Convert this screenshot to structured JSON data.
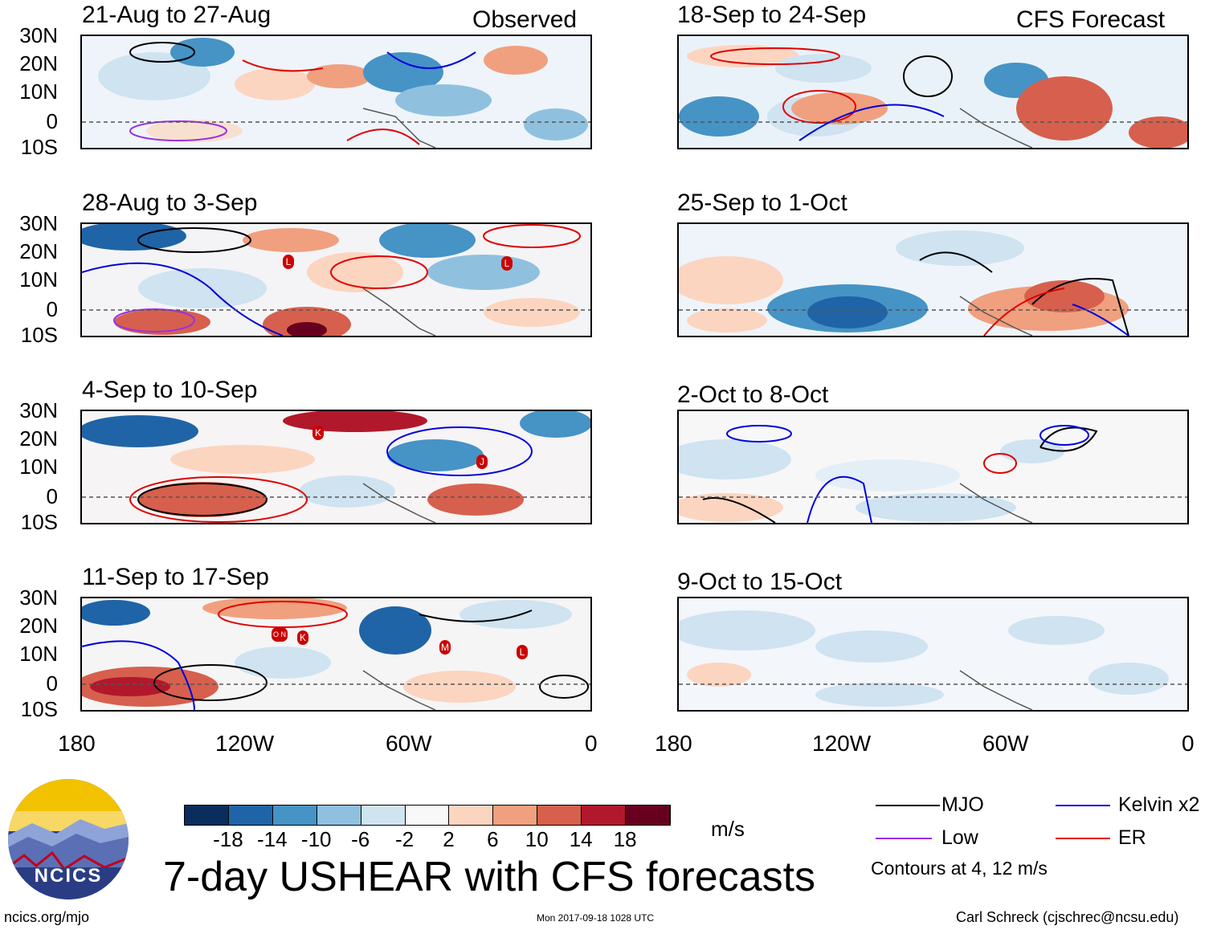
{
  "left_panels": [
    {
      "title": "21-Aug to 27-Aug",
      "tag": "Observed"
    },
    {
      "title": "28-Aug to 3-Sep",
      "tag": ""
    },
    {
      "title": "4-Sep to 10-Sep",
      "tag": ""
    },
    {
      "title": "11-Sep to 17-Sep",
      "tag": ""
    }
  ],
  "right_panels": [
    {
      "title": "18-Sep to 24-Sep",
      "tag": "CFS Forecast"
    },
    {
      "title": "25-Sep to 1-Oct",
      "tag": ""
    },
    {
      "title": "2-Oct to 8-Oct",
      "tag": ""
    },
    {
      "title": "9-Oct to 15-Oct",
      "tag": ""
    }
  ],
  "lat_labels": [
    "30N",
    "20N",
    "10N",
    "0",
    "10S"
  ],
  "lon_labels": [
    "180",
    "120W",
    "60W",
    "0"
  ],
  "colorbar": {
    "colors": [
      "#0b2d5e",
      "#1f64a6",
      "#4693c6",
      "#8fc1df",
      "#cfe3f1",
      "#f8f8f8",
      "#fcd5c0",
      "#f0a07e",
      "#d6604d",
      "#b2182b",
      "#67001f"
    ],
    "labels": [
      "-18",
      "-14",
      "-10",
      "-6",
      "-2",
      "2",
      "6",
      "10",
      "14",
      "18"
    ],
    "units": "m/s"
  },
  "legend": {
    "items": [
      {
        "label": "MJO",
        "color": "#000000"
      },
      {
        "label": "Kelvin x2",
        "color": "#0000dd"
      },
      {
        "label": "Low",
        "color": "#9b30e8"
      },
      {
        "label": "ER",
        "color": "#e00000"
      }
    ],
    "note": "Contours at 4, 12 m/s"
  },
  "main_title": "7-day USHEAR with CFS forecasts",
  "logo_text": "NCICS",
  "footer": {
    "left": "ncics.org/mjo",
    "center": "Mon 2017-09-18 1028 UTC",
    "right": "Carl Schreck (cjschrec@ncsu.edu)"
  },
  "storms": {
    "panel_2": [
      "L",
      "L"
    ],
    "panel_3": [
      "K",
      "J"
    ],
    "panel_4": [
      "O N",
      "K",
      "M",
      "L"
    ]
  }
}
